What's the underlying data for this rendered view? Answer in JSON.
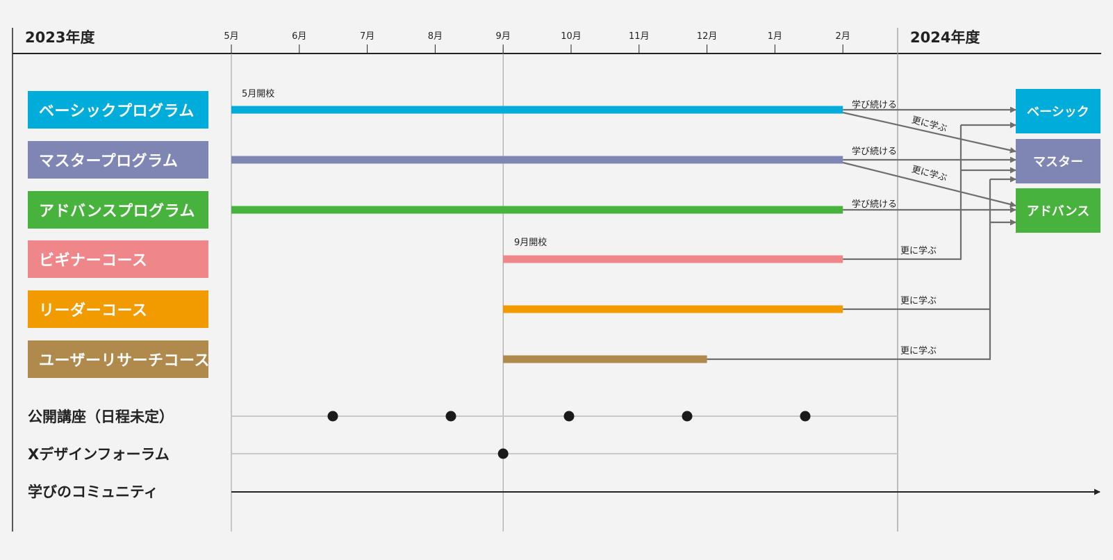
{
  "years": {
    "start": "2023年度",
    "end": "2024年度"
  },
  "months": [
    "5月",
    "6月",
    "7月",
    "8月",
    "9月",
    "10月",
    "11月",
    "12月",
    "1月",
    "2月"
  ],
  "programs": [
    {
      "label": "ベーシックプログラム",
      "color": "#00acd9",
      "start": "5月",
      "end": "2月"
    },
    {
      "label": "マスタープログラム",
      "color": "#7f86b4",
      "start": "5月",
      "end": "2月"
    },
    {
      "label": "アドバンスプログラム",
      "color": "#47b33d",
      "start": "5月",
      "end": "2月"
    },
    {
      "label": "ビギナーコース",
      "color": "#ef878a",
      "start": "9月",
      "end": "2月"
    },
    {
      "label": "リーダーコース",
      "color": "#f29b00",
      "start": "9月",
      "end": "2月"
    },
    {
      "label": "ユーザーリサーチコース",
      "color": "#b08a4c",
      "start": "9月",
      "end": "12月"
    }
  ],
  "start_notes": [
    "5月開校",
    "9月開校"
  ],
  "destinations": [
    {
      "label": "ベーシック",
      "color": "#00acd9"
    },
    {
      "label": "マスター",
      "color": "#7f86b4"
    },
    {
      "label": "アドバンス",
      "color": "#47b33d"
    }
  ],
  "flow_labels": {
    "continue": "学び続ける",
    "further": "更に学ぶ"
  },
  "events": [
    {
      "label": "公開講座（日程未定）"
    },
    {
      "label": "Xデザインフォーラム"
    },
    {
      "label": "学びのコミュニティ"
    }
  ],
  "colors": {
    "axis": "#222222",
    "grid": "#999999",
    "arrow": "#6e6e6e",
    "event_line": "#c8c8c8",
    "dot": "#1a1a1a"
  }
}
